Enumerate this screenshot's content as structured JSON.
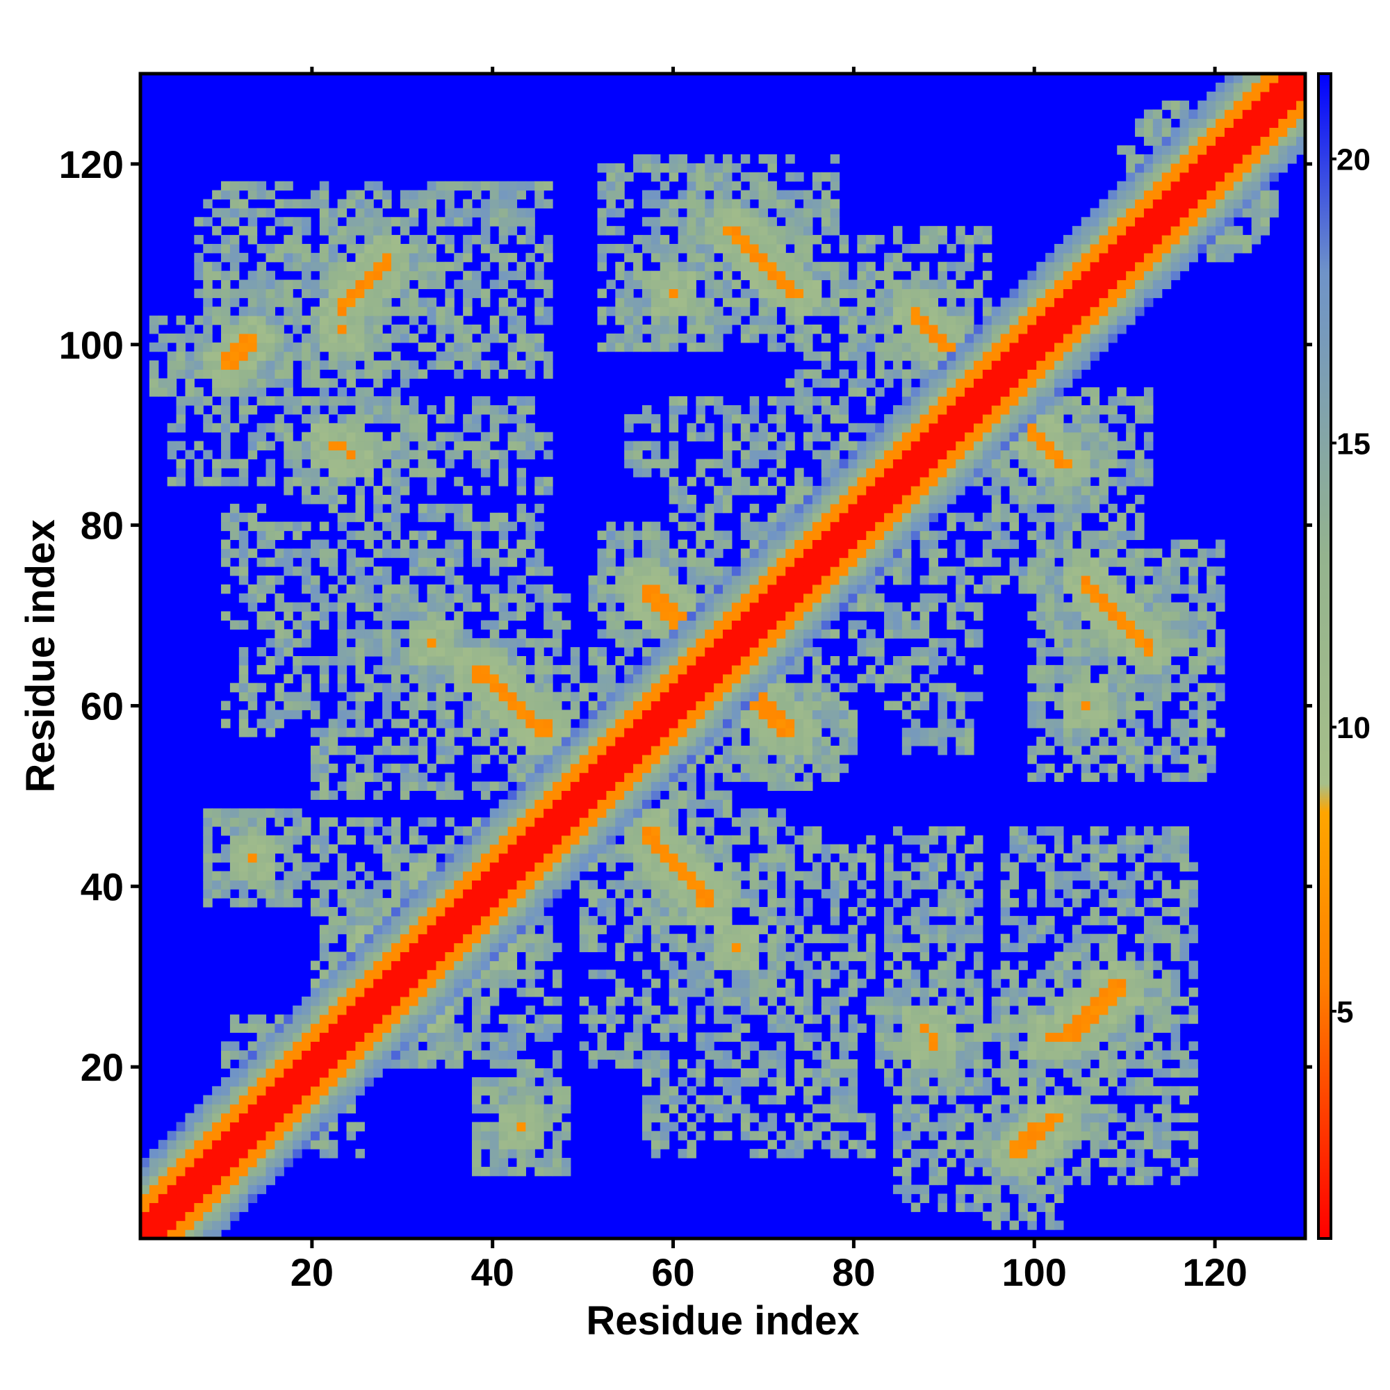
{
  "chart_data": {
    "type": "heatmap",
    "title": "",
    "xlabel": "Residue index",
    "ylabel": "Residue index",
    "xlim": [
      1,
      130
    ],
    "ylim": [
      1,
      130
    ],
    "x_ticks": [
      20,
      40,
      60,
      80,
      100,
      120
    ],
    "y_ticks": [
      20,
      40,
      60,
      80,
      100,
      120
    ],
    "x_tick_labels": [
      "20",
      "40",
      "60",
      "80",
      "100",
      "120"
    ],
    "y_tick_labels": [
      "20",
      "40",
      "60",
      "80",
      "100",
      "120"
    ],
    "grid": false,
    "background_value": 21.5,
    "colorbar": {
      "range": [
        1,
        21.5
      ],
      "ticks": [
        5,
        10,
        15,
        20
      ],
      "tick_labels": [
        "5",
        "10",
        "15",
        "20"
      ],
      "placement": "right",
      "stops": [
        {
          "value": 1,
          "color": "#ff0000"
        },
        {
          "value": 5.5,
          "color": "#ff8000"
        },
        {
          "value": 8.5,
          "color": "#ffa500"
        },
        {
          "value": 9,
          "color": "#a6bf8a"
        },
        {
          "value": 13,
          "color": "#94b38e"
        },
        {
          "value": 18,
          "color": "#6f93c8"
        },
        {
          "value": 21.5,
          "color": "#0000ff"
        }
      ]
    },
    "diagonal": {
      "core_halfwidth": 2,
      "near_halfwidth": 4,
      "shell_halfwidth": 8
    },
    "contact_segments": [
      {
        "x1": 57,
        "y1": 73,
        "x2": 73,
        "y2": 57,
        "width": 1.6
      },
      {
        "x1": 38,
        "y1": 64,
        "x2": 46,
        "y2": 57,
        "width": 1.4
      },
      {
        "x1": 64,
        "y1": 38,
        "x2": 57,
        "y2": 46,
        "width": 1.4
      },
      {
        "x1": 10,
        "y1": 98,
        "x2": 13,
        "y2": 101,
        "width": 1.3
      },
      {
        "x1": 98,
        "y1": 10,
        "x2": 101,
        "y2": 13,
        "width": 1.3
      },
      {
        "x1": 23,
        "y1": 104,
        "x2": 28,
        "y2": 110,
        "width": 1.3
      },
      {
        "x1": 104,
        "y1": 23,
        "x2": 110,
        "y2": 28,
        "width": 1.3
      },
      {
        "x1": 66,
        "y1": 113,
        "x2": 74,
        "y2": 106,
        "width": 1.3
      },
      {
        "x1": 113,
        "y1": 66,
        "x2": 106,
        "y2": 74,
        "width": 1.3
      },
      {
        "x1": 87,
        "y1": 104,
        "x2": 93,
        "y2": 97,
        "width": 1.3
      },
      {
        "x1": 104,
        "y1": 87,
        "x2": 97,
        "y2": 93,
        "width": 1.3
      },
      {
        "x1": 107,
        "y1": 73,
        "x2": 113,
        "y2": 66,
        "width": 1.3
      },
      {
        "x1": 73,
        "y1": 107,
        "x2": 66,
        "y2": 113,
        "width": 1.3
      },
      {
        "x1": 98,
        "y1": 10,
        "x2": 103,
        "y2": 14,
        "width": 1.3
      },
      {
        "x1": 103,
        "y1": 23,
        "x2": 110,
        "y2": 29,
        "width": 1.3
      },
      {
        "x1": 26,
        "y1": 33,
        "x2": 31,
        "y2": 27,
        "width": 1.2
      },
      {
        "x1": 33,
        "y1": 26,
        "x2": 27,
        "y2": 31,
        "width": 1.2
      },
      {
        "x1": 35,
        "y1": 39,
        "x2": 39,
        "y2": 35,
        "width": 1.2
      },
      {
        "x1": 50,
        "y1": 54,
        "x2": 54,
        "y2": 50,
        "width": 1.1
      },
      {
        "x1": 117,
        "y1": 120,
        "x2": 121,
        "y2": 116,
        "width": 1.2
      },
      {
        "x1": 120,
        "y1": 117,
        "x2": 116,
        "y2": 121,
        "width": 1.2
      },
      {
        "x1": 77,
        "y1": 80,
        "x2": 80,
        "y2": 77,
        "width": 1.2
      }
    ],
    "contact_points": [
      {
        "x": 88,
        "y": 24
      },
      {
        "x": 89,
        "y": 22
      },
      {
        "x": 24,
        "y": 88
      },
      {
        "x": 22,
        "y": 89
      },
      {
        "x": 13,
        "y": 43
      },
      {
        "x": 43,
        "y": 13
      },
      {
        "x": 23,
        "y": 89
      },
      {
        "x": 89,
        "y": 23
      },
      {
        "x": 33,
        "y": 67
      },
      {
        "x": 67,
        "y": 33
      },
      {
        "x": 60,
        "y": 106
      },
      {
        "x": 106,
        "y": 60
      },
      {
        "x": 23,
        "y": 102
      },
      {
        "x": 102,
        "y": 23
      },
      {
        "x": 33,
        "y": 40
      },
      {
        "x": 40,
        "y": 33
      }
    ],
    "interaction_patches": [
      {
        "x1": 2,
        "x2": 28,
        "y1": 95,
        "y2": 103
      },
      {
        "x1": 12,
        "x2": 40,
        "y1": 100,
        "y2": 113
      },
      {
        "x1": 5,
        "x2": 15,
        "y1": 88,
        "y2": 99
      },
      {
        "x1": 20,
        "x2": 46,
        "y1": 97,
        "y2": 114
      },
      {
        "x1": 21,
        "x2": 28,
        "y1": 84,
        "y2": 92
      },
      {
        "x1": 32,
        "x2": 46,
        "y1": 84,
        "y2": 92
      },
      {
        "x1": 20,
        "x2": 28,
        "y1": 50,
        "y2": 76
      },
      {
        "x1": 20,
        "x2": 46,
        "y1": 50,
        "y2": 76
      },
      {
        "x1": 10,
        "x2": 25,
        "y1": 58,
        "y2": 62
      },
      {
        "x1": 44,
        "x2": 64,
        "y1": 50,
        "y2": 66
      },
      {
        "x1": 52,
        "x2": 62,
        "y1": 62,
        "y2": 80
      },
      {
        "x1": 58,
        "x2": 82,
        "y1": 86,
        "y2": 92
      },
      {
        "x1": 69,
        "x2": 94,
        "y1": 60,
        "y2": 82
      },
      {
        "x1": 66,
        "x2": 78,
        "y1": 55,
        "y2": 74
      },
      {
        "x1": 75,
        "x2": 90,
        "y1": 60,
        "y2": 90
      },
      {
        "x1": 52,
        "x2": 73,
        "y1": 100,
        "y2": 120
      },
      {
        "x1": 73,
        "x2": 92,
        "y1": 95,
        "y2": 110
      },
      {
        "x1": 93,
        "x2": 113,
        "y1": 85,
        "y2": 95
      },
      {
        "x1": 98,
        "x2": 112,
        "y1": 78,
        "y2": 92
      },
      {
        "x1": 103,
        "x2": 121,
        "y1": 56,
        "y2": 78
      },
      {
        "x1": 100,
        "x2": 121,
        "y1": 55,
        "y2": 62
      },
      {
        "x1": 86,
        "x2": 93,
        "y1": 55,
        "y2": 62
      },
      {
        "x1": 20,
        "x2": 47,
        "y1": 36,
        "y2": 45
      },
      {
        "x1": 20,
        "x2": 47,
        "y1": 20,
        "y2": 36
      },
      {
        "x1": 10,
        "x2": 25,
        "y1": 12,
        "y2": 25
      },
      {
        "x1": 40,
        "x2": 47,
        "y1": 12,
        "y2": 25
      },
      {
        "x1": 57,
        "x2": 72,
        "y1": 30,
        "y2": 48
      },
      {
        "x1": 57,
        "x2": 80,
        "y1": 12,
        "y2": 30
      },
      {
        "x1": 72,
        "x2": 82,
        "y1": 22,
        "y2": 45
      },
      {
        "x1": 84,
        "x2": 94,
        "y1": 30,
        "y2": 45
      },
      {
        "x1": 84,
        "x2": 96,
        "y1": 18,
        "y2": 30
      },
      {
        "x1": 85,
        "x2": 100,
        "y1": 4,
        "y2": 18
      },
      {
        "x1": 99,
        "x2": 118,
        "y1": 7,
        "y2": 30
      },
      {
        "x1": 100,
        "x2": 118,
        "y1": 30,
        "y2": 46
      },
      {
        "x1": 69,
        "x2": 82,
        "y1": 10,
        "y2": 14
      }
    ]
  }
}
